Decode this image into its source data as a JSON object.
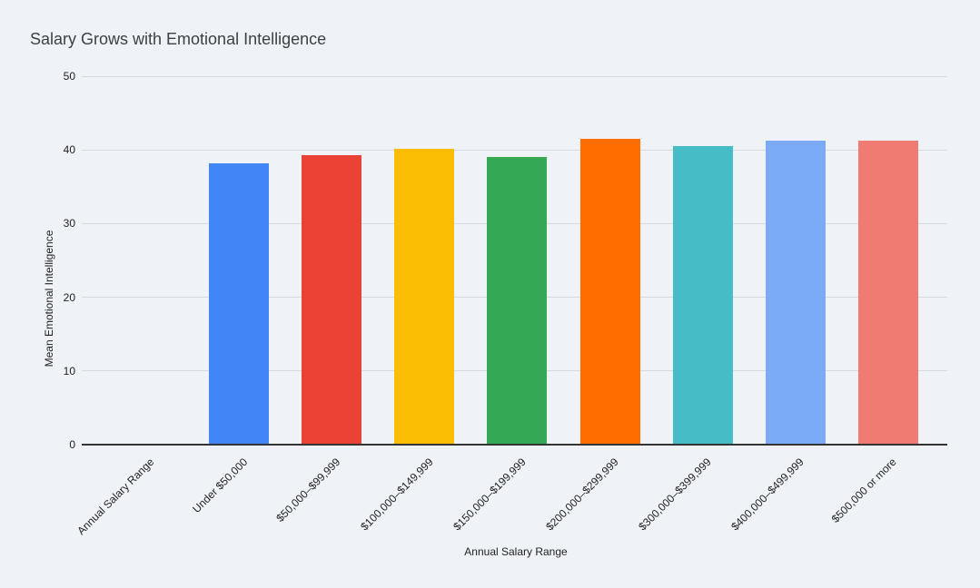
{
  "page": {
    "background_color": "#eff3f8"
  },
  "chart_data": {
    "type": "bar",
    "title": "Salary Grows with Emotional Intelligence",
    "title_color": "#3c4043",
    "xlabel": "Annual Salary Range",
    "ylabel": "Mean Emotional Intelligence",
    "ylim": [
      0,
      50
    ],
    "yticks": [
      0,
      10,
      20,
      30,
      40,
      50
    ],
    "grid": true,
    "legend": "none",
    "gridline_color": "#d6d9de",
    "baseline_color": "#333333",
    "axis_text_color": "#1f1f1f",
    "categories": [
      "Annual Salary Range",
      "Under $50,000",
      "$50,000–$99,999",
      "$100,000–$149,999",
      "$150,000–$199,999",
      "$200,000–$299,999",
      "$300,000–$399,999",
      "$400,000–$499,999",
      "$500,000 or more"
    ],
    "values": [
      null,
      38.2,
      39.3,
      40.2,
      39.1,
      41.5,
      40.5,
      41.3,
      41.3
    ],
    "bar_colors": [
      null,
      "#4285F4",
      "#EA4335",
      "#FBBC04",
      "#34A853",
      "#FF6D01",
      "#46BDC6",
      "#7BAAF7",
      "#F07B72"
    ]
  }
}
